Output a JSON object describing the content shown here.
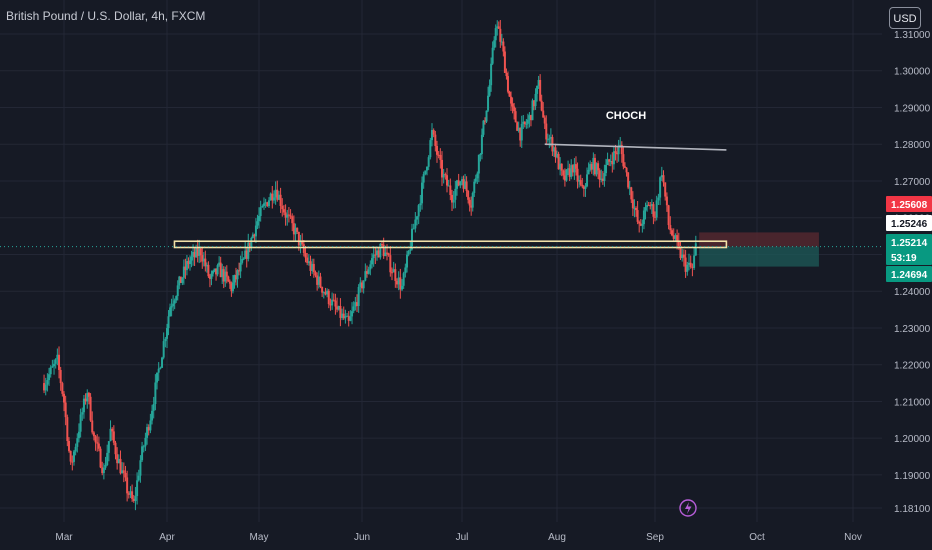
{
  "header": {
    "title": "British Pound / U.S. Dollar, 4h, FXCM",
    "currency_button": "USD"
  },
  "colors": {
    "background": "#161a25",
    "grid": "#232735",
    "up": "#26a69a",
    "down": "#ef5350",
    "zone_outline": "#f2e2a8",
    "trend_line": "#b2b5be",
    "tp_zone": "#1e5b58",
    "sl_zone": "#5b2a30"
  },
  "chart_data": {
    "type": "candlestick",
    "symbol": "GBP/USD",
    "timeframe": "4h",
    "ylim": [
      1.178,
      1.318
    ],
    "y_ticks": [
      "1.31000",
      "1.30000",
      "1.29000",
      "1.28000",
      "1.27000",
      "1.26000",
      "1.25000",
      "1.24000",
      "1.23000",
      "1.22000",
      "1.21000",
      "1.20000",
      "1.19000",
      "1.18100"
    ],
    "x_ticks": [
      "Mar",
      "Apr",
      "May",
      "Jun",
      "Jul",
      "Aug",
      "Sep",
      "Oct",
      "Nov"
    ],
    "price_path": [
      [
        "Feb 23",
        1.215
      ],
      [
        "Feb 27",
        1.221
      ],
      [
        "Mar 1",
        1.21
      ],
      [
        "Mar 3",
        1.192
      ],
      [
        "Mar 6",
        1.205
      ],
      [
        "Mar 8",
        1.213
      ],
      [
        "Mar 10",
        1.2
      ],
      [
        "Mar 13",
        1.191
      ],
      [
        "Mar 15",
        1.202
      ],
      [
        "Mar 17",
        1.195
      ],
      [
        "Mar 20",
        1.186
      ],
      [
        "Mar 22",
        1.182
      ],
      [
        "Mar 24",
        1.194
      ],
      [
        "Mar 27",
        1.206
      ],
      [
        "Mar 30",
        1.221
      ],
      [
        "Apr 2",
        1.236
      ],
      [
        "Apr 5",
        1.242
      ],
      [
        "Apr 8",
        1.248
      ],
      [
        "Apr 12",
        1.251
      ],
      [
        "Apr 15",
        1.243
      ],
      [
        "Apr 18",
        1.246
      ],
      [
        "Apr 22",
        1.241
      ],
      [
        "Apr 26",
        1.248
      ],
      [
        "Apr 30",
        1.258
      ],
      [
        "May 3",
        1.264
      ],
      [
        "May 6",
        1.268
      ],
      [
        "May 9",
        1.261
      ],
      [
        "May 12",
        1.256
      ],
      [
        "May 15",
        1.249
      ],
      [
        "May 18",
        1.244
      ],
      [
        "May 22",
        1.238
      ],
      [
        "May 25",
        1.234
      ],
      [
        "May 28",
        1.231
      ],
      [
        "Jun 1",
        1.242
      ],
      [
        "Jun 4",
        1.249
      ],
      [
        "Jun 7",
        1.252
      ],
      [
        "Jun 10",
        1.246
      ],
      [
        "Jun 13",
        1.241
      ],
      [
        "Jun 16",
        1.255
      ],
      [
        "Jun 19",
        1.268
      ],
      [
        "Jun 22",
        1.283
      ],
      [
        "Jun 25",
        1.272
      ],
      [
        "Jun 28",
        1.266
      ],
      [
        "Jul 1",
        1.271
      ],
      [
        "Jul 4",
        1.264
      ],
      [
        "Jul 7",
        1.279
      ],
      [
        "Jul 10",
        1.296
      ],
      [
        "Jul 12",
        1.313
      ],
      [
        "Jul 14",
        1.307
      ],
      [
        "Jul 17",
        1.29
      ],
      [
        "Jul 20",
        1.283
      ],
      [
        "Jul 23",
        1.287
      ],
      [
        "Jul 26",
        1.296
      ],
      [
        "Jul 28",
        1.284
      ],
      [
        "Jul 31",
        1.279
      ],
      [
        "Aug 3",
        1.27
      ],
      [
        "Aug 6",
        1.274
      ],
      [
        "Aug 9",
        1.267
      ],
      [
        "Aug 12",
        1.275
      ],
      [
        "Aug 15",
        1.271
      ],
      [
        "Aug 18",
        1.276
      ],
      [
        "Aug 21",
        1.279
      ],
      [
        "Aug 24",
        1.268
      ],
      [
        "Aug 27",
        1.257
      ],
      [
        "Aug 30",
        1.264
      ],
      [
        "Sep 1",
        1.261
      ],
      [
        "Sep 3",
        1.273
      ],
      [
        "Sep 5",
        1.258
      ],
      [
        "Sep 8",
        1.251
      ],
      [
        "Sep 10",
        1.247
      ],
      [
        "Sep 12",
        1.246
      ],
      [
        "Sep 13",
        1.252
      ]
    ],
    "annotations": {
      "choch_label": "CHOCH",
      "choch_line": {
        "from": [
          "Jul 28",
          1.28
        ],
        "to": [
          "Sep 22",
          1.279
        ]
      },
      "support_zone": {
        "from": "Apr 8",
        "to": "Sep 22",
        "top": 1.2536,
        "bottom": 1.2519
      },
      "tp_box": {
        "from": "Sep 14",
        "to": "Oct 21",
        "top": 1.2521,
        "bottom": 1.2467
      },
      "sl_box": {
        "from": "Sep 14",
        "to": "Oct 21",
        "top": 1.256,
        "bottom": 1.2521
      }
    },
    "price_badges": [
      {
        "value": "1.25608",
        "price": 1.25608,
        "bg": "#f23645",
        "fg": "#ffffff"
      },
      {
        "value": "1.25246",
        "price": 1.25246,
        "bg": "#ffffff",
        "fg": "#131722"
      },
      {
        "value": "1.25214",
        "countdown": "53:19",
        "price": 1.25214,
        "bg": "#089981",
        "fg": "#ffffff"
      },
      {
        "value": "1.24694",
        "price": 1.24694,
        "bg": "#089981",
        "fg": "#ffffff"
      }
    ],
    "grid": true
  }
}
